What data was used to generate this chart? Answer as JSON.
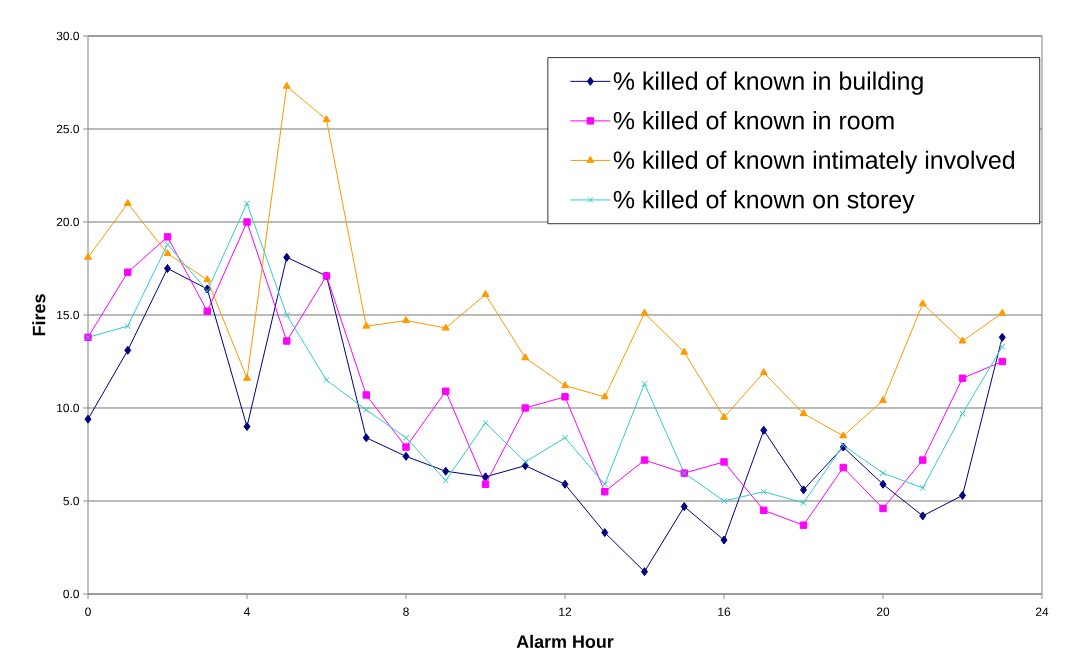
{
  "chart_data": {
    "type": "line",
    "xlabel": "Alarm Hour",
    "ylabel": "Fires",
    "x": [
      0,
      1,
      2,
      3,
      4,
      5,
      6,
      7,
      8,
      9,
      10,
      11,
      12,
      13,
      14,
      15,
      16,
      17,
      18,
      19,
      20,
      21,
      22,
      23
    ],
    "series": [
      {
        "name": "% killed of known in building",
        "color": "#000080",
        "marker": "diamond",
        "values": [
          9.4,
          13.1,
          17.5,
          16.4,
          9.0,
          18.1,
          17.1,
          8.4,
          7.4,
          6.6,
          6.3,
          6.9,
          5.9,
          3.3,
          1.2,
          4.7,
          2.9,
          8.8,
          5.6,
          7.9,
          5.9,
          4.2,
          5.3,
          13.8
        ]
      },
      {
        "name": "% killed of known in room",
        "color": "#ff00ff",
        "marker": "square",
        "values": [
          13.8,
          17.3,
          19.2,
          15.2,
          20.0,
          13.6,
          17.1,
          10.7,
          7.9,
          10.9,
          5.9,
          10.0,
          10.6,
          5.5,
          7.2,
          6.5,
          7.1,
          4.5,
          3.7,
          6.8,
          4.6,
          7.2,
          11.6,
          12.5
        ]
      },
      {
        "name": "% killed of known intimately involved",
        "color": "#ff9900",
        "marker": "triangle",
        "values": [
          18.1,
          21.0,
          18.3,
          16.9,
          11.6,
          27.3,
          25.5,
          14.4,
          14.7,
          14.3,
          16.1,
          12.7,
          11.2,
          10.6,
          15.1,
          13.0,
          9.5,
          11.9,
          9.7,
          8.5,
          10.4,
          15.6,
          13.6,
          15.1
        ]
      },
      {
        "name": "% killed of known on storey",
        "color": "#33cccc",
        "marker": "cross",
        "values": [
          13.8,
          14.4,
          18.8,
          16.3,
          21.0,
          15.0,
          11.5,
          9.9,
          8.4,
          6.1,
          9.2,
          7.1,
          8.4,
          5.9,
          11.3,
          6.5,
          5.0,
          5.5,
          4.9,
          8.0,
          6.5,
          5.7,
          9.7,
          13.3
        ]
      }
    ],
    "xlim": [
      0,
      24
    ],
    "xticks": [
      0,
      4,
      8,
      12,
      16,
      20,
      24
    ],
    "ylim": [
      0,
      30
    ],
    "yticks": [
      {
        "value": 0,
        "label": "0.0"
      },
      {
        "value": 5,
        "label": "5.0"
      },
      {
        "value": 10,
        "label": "10.0"
      },
      {
        "value": 15,
        "label": "15.0"
      },
      {
        "value": 20,
        "label": "20.0"
      },
      {
        "value": 25,
        "label": "25.0"
      },
      {
        "value": 30,
        "label": "30.0"
      }
    ],
    "grid": "y",
    "legend": "top right"
  }
}
